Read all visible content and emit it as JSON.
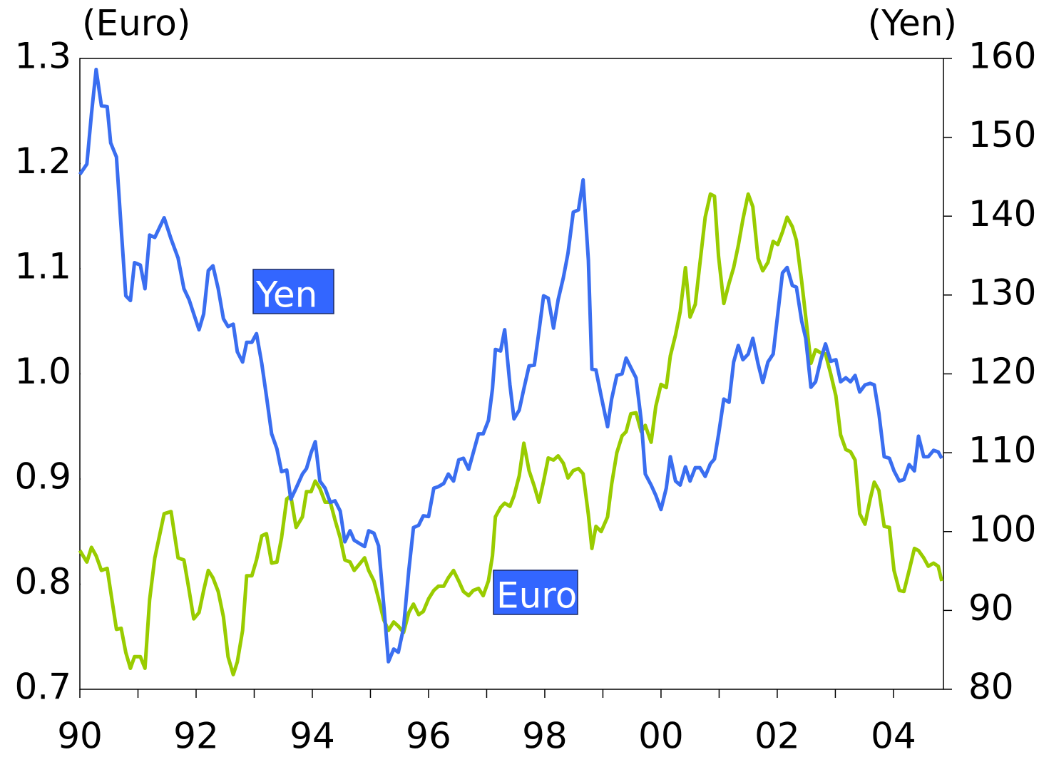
{
  "chart_data": {
    "type": "line",
    "y_label": "(Euro)",
    "y2_label": "(Yen)",
    "x": [
      1990.0,
      1990.12,
      1990.2,
      1990.28,
      1990.37,
      1990.47,
      1990.53,
      1990.63,
      1990.71,
      1990.79,
      1990.87,
      1990.94,
      1991.04,
      1991.12,
      1991.2,
      1991.29,
      1991.45,
      1991.57,
      1991.69,
      1991.79,
      1991.88,
      1991.96,
      1992.05,
      1992.13,
      1992.21,
      1992.29,
      1992.38,
      1992.47,
      1992.55,
      1992.64,
      1992.71,
      1992.8,
      1992.87,
      1992.96,
      1993.04,
      1993.13,
      1993.21,
      1993.3,
      1993.39,
      1993.47,
      1993.56,
      1993.63,
      1993.72,
      1993.83,
      1993.9,
      1993.98,
      1994.05,
      1994.13,
      1994.22,
      1994.31,
      1994.39,
      1994.48,
      1994.56,
      1994.65,
      1994.72,
      1994.9,
      1994.97,
      1995.06,
      1995.14,
      1995.23,
      1995.31,
      1995.4,
      1995.48,
      1995.57,
      1995.66,
      1995.74,
      1995.83,
      1995.91,
      1996.0,
      1996.09,
      1996.17,
      1996.26,
      1996.34,
      1996.43,
      1996.52,
      1996.6,
      1996.69,
      1996.77,
      1996.86,
      1996.94,
      1997.03,
      1997.1,
      1997.15,
      1997.24,
      1997.31,
      1997.4,
      1997.47,
      1997.56,
      1997.64,
      1997.73,
      1997.82,
      1997.9,
      1997.98,
      1998.06,
      1998.15,
      1998.23,
      1998.32,
      1998.4,
      1998.49,
      1998.58,
      1998.66,
      1998.75,
      1998.81,
      1998.88,
      1998.97,
      1999.08,
      1999.15,
      1999.24,
      1999.33,
      1999.4,
      1999.48,
      1999.57,
      1999.66,
      1999.73,
      1999.83,
      1999.91,
      2000.0,
      2000.09,
      2000.16,
      2000.25,
      2000.33,
      2000.42,
      2000.5,
      2000.59,
      2000.67,
      2000.76,
      2000.85,
      2000.92,
      2000.99,
      2001.08,
      2001.17,
      2001.25,
      2001.33,
      2001.41,
      2001.5,
      2001.58,
      2001.67,
      2001.75,
      2001.84,
      2001.93,
      2002.01,
      2002.09,
      2002.17,
      2002.26,
      2002.33,
      2002.42,
      2002.49,
      2002.58,
      2002.66,
      2002.75,
      2002.83,
      2002.92,
      2003.01,
      2003.09,
      2003.18,
      2003.26,
      2003.34,
      2003.42,
      2003.51,
      2003.6,
      2003.67,
      2003.75,
      2003.84,
      2003.93,
      2004.01,
      2004.1,
      2004.18,
      2004.27,
      2004.36,
      2004.43,
      2004.52,
      2004.6,
      2004.69,
      2004.77,
      2004.83
    ],
    "series": [
      {
        "name": "Yen",
        "color": "#3a6ef0",
        "axis": "y2",
        "values": [
          145.3,
          146.6,
          153,
          158.6,
          154,
          153.9,
          149.3,
          147.5,
          138.5,
          129.9,
          129.3,
          134.1,
          133.8,
          130.8,
          137.6,
          137.3,
          139.8,
          137.1,
          134.7,
          130.8,
          129.4,
          127.6,
          125.6,
          127.6,
          133.1,
          133.7,
          130.8,
          127,
          126,
          126.3,
          122.8,
          121.5,
          124,
          124,
          125.1,
          121.3,
          117.2,
          112.4,
          110.5,
          107.6,
          107.8,
          104.1,
          105.5,
          107.3,
          108,
          110,
          111.4,
          106.4,
          105.5,
          103.7,
          103.9,
          102.6,
          98.7,
          100.1,
          98.9,
          98.1,
          100.1,
          99.8,
          98.2,
          90.6,
          83.5,
          85.1,
          84.7,
          87.8,
          95.1,
          100.5,
          100.8,
          102,
          101.9,
          105.5,
          105.7,
          106.1,
          107.3,
          106.4,
          109.1,
          109.3,
          107.9,
          110,
          112.4,
          112.4,
          114.1,
          118.1,
          123.1,
          122.9,
          125.6,
          118.6,
          114.3,
          115.4,
          118.1,
          121,
          121.1,
          125.4,
          129.9,
          129.6,
          125.8,
          129.4,
          132.2,
          135.3,
          140.5,
          140.8,
          144.6,
          134.4,
          120.6,
          120.5,
          117.2,
          113.3,
          116.8,
          119.8,
          120,
          122,
          120.8,
          119.5,
          114.1,
          107.3,
          105.9,
          104.6,
          102.8,
          105.5,
          109.5,
          106.4,
          105.9,
          108.2,
          106.4,
          108.1,
          108.1,
          107,
          108.6,
          109.2,
          112.3,
          116.8,
          116.4,
          121.5,
          123.6,
          121.8,
          122.5,
          124.5,
          121.3,
          118.9,
          121.5,
          122.5,
          127.6,
          132.8,
          133.5,
          131.2,
          131,
          126.7,
          124.5,
          118.3,
          119,
          121.8,
          123.8,
          121.6,
          121.8,
          119,
          119.5,
          119,
          119.8,
          117.7,
          118.6,
          118.8,
          118.6,
          115,
          109.5,
          109.3,
          107.7,
          106.4,
          106.6,
          108.5,
          107.7,
          112.1,
          109.5,
          109.5,
          110.3,
          110.1,
          109.3
        ]
      },
      {
        "name": "Euro",
        "color": "#99cc00",
        "axis": "y",
        "values": [
          0.832,
          0.821,
          0.835,
          0.827,
          0.813,
          0.815,
          0.793,
          0.757,
          0.758,
          0.735,
          0.72,
          0.731,
          0.731,
          0.72,
          0.785,
          0.825,
          0.867,
          0.869,
          0.825,
          0.823,
          0.794,
          0.767,
          0.773,
          0.794,
          0.813,
          0.806,
          0.793,
          0.769,
          0.731,
          0.714,
          0.726,
          0.756,
          0.808,
          0.808,
          0.823,
          0.846,
          0.848,
          0.82,
          0.821,
          0.844,
          0.881,
          0.884,
          0.854,
          0.864,
          0.888,
          0.888,
          0.898,
          0.891,
          0.878,
          0.878,
          0.861,
          0.844,
          0.823,
          0.821,
          0.813,
          0.825,
          0.813,
          0.803,
          0.786,
          0.766,
          0.756,
          0.764,
          0.76,
          0.754,
          0.773,
          0.781,
          0.771,
          0.774,
          0.786,
          0.794,
          0.798,
          0.798,
          0.806,
          0.813,
          0.803,
          0.793,
          0.789,
          0.794,
          0.796,
          0.789,
          0.803,
          0.827,
          0.864,
          0.873,
          0.877,
          0.874,
          0.884,
          0.903,
          0.934,
          0.908,
          0.893,
          0.878,
          0.898,
          0.92,
          0.918,
          0.922,
          0.915,
          0.901,
          0.908,
          0.91,
          0.905,
          0.866,
          0.834,
          0.855,
          0.85,
          0.864,
          0.895,
          0.925,
          0.941,
          0.945,
          0.962,
          0.963,
          0.945,
          0.951,
          0.935,
          0.969,
          0.99,
          0.987,
          1.017,
          1.037,
          1.059,
          1.101,
          1.054,
          1.066,
          1.105,
          1.149,
          1.171,
          1.169,
          1.112,
          1.067,
          1.086,
          1.101,
          1.122,
          1.147,
          1.171,
          1.159,
          1.11,
          1.098,
          1.106,
          1.126,
          1.123,
          1.135,
          1.149,
          1.14,
          1.127,
          1.088,
          1.054,
          1.01,
          1.023,
          1.02,
          1.019,
          1.0,
          0.979,
          0.942,
          0.928,
          0.926,
          0.918,
          0.867,
          0.857,
          0.881,
          0.897,
          0.889,
          0.855,
          0.854,
          0.813,
          0.794,
          0.793,
          0.813,
          0.834,
          0.832,
          0.825,
          0.817,
          0.82,
          0.817,
          0.803
        ]
      }
    ],
    "xlim": [
      1990,
      2004.86
    ],
    "xticks": [
      {
        "value": 1990,
        "label": "90"
      },
      {
        "value": 1992,
        "label": "92"
      },
      {
        "value": 1994,
        "label": "94"
      },
      {
        "value": 1996,
        "label": "96"
      },
      {
        "value": 1998,
        "label": "98"
      },
      {
        "value": 2000,
        "label": "00"
      },
      {
        "value": 2002,
        "label": "02"
      },
      {
        "value": 2004,
        "label": "04"
      }
    ],
    "xminor_ticks": [
      1991,
      1993,
      1995,
      1997,
      1999,
      2001,
      2003
    ],
    "ylim": [
      0.7,
      1.3
    ],
    "yticks": [
      0.7,
      0.8,
      0.9,
      {
        "value": 1,
        "label": "1.0"
      },
      1.1,
      1.2,
      1.3
    ],
    "y2lim": [
      80,
      160
    ],
    "y2ticks": [
      80,
      90,
      100,
      110,
      120,
      130,
      140,
      150,
      160
    ]
  }
}
